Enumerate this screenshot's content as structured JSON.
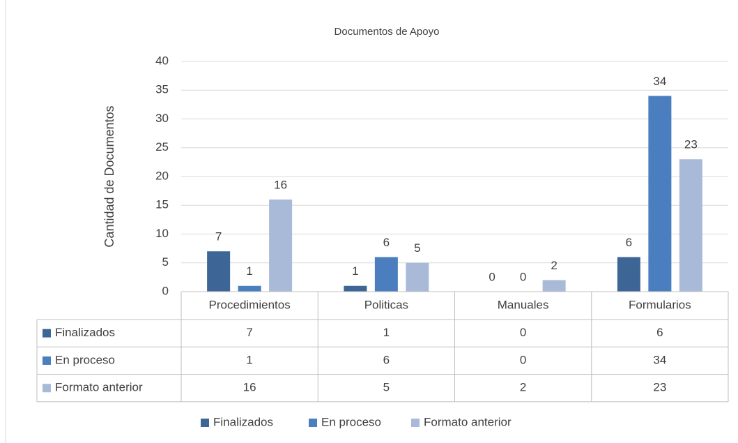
{
  "chart_data": {
    "type": "bar",
    "title": "Documentos de Apoyo",
    "y_label": "Cantidad de Documentos",
    "categories": [
      "Procedimientos",
      "Politicas",
      "Manuales",
      "Formularios"
    ],
    "series": [
      {
        "name": "Finalizados",
        "color": "#3d6595",
        "values": [
          7,
          1,
          0,
          6
        ]
      },
      {
        "name": "En proceso",
        "color": "#4a7ebe",
        "values": [
          1,
          6,
          0,
          34
        ]
      },
      {
        "name": "Formato anterior",
        "color": "#a9bad8",
        "values": [
          16,
          5,
          2,
          23
        ]
      }
    ],
    "ylim": [
      0,
      40
    ],
    "yticks": [
      0,
      5,
      10,
      15,
      20,
      25,
      30,
      35,
      40
    ],
    "grid": true,
    "legend": "bottom",
    "data_table": true
  }
}
